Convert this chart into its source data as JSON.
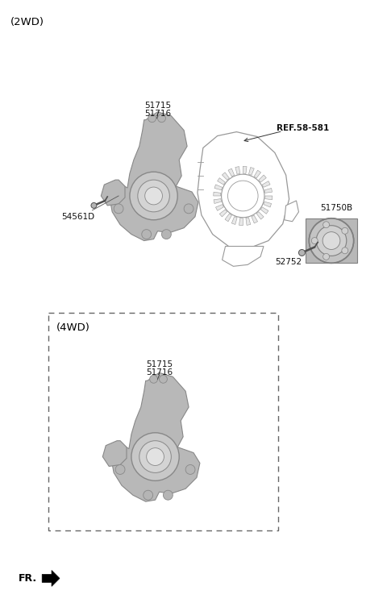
{
  "bg_color": "#ffffff",
  "title_2wd": "(2WD)",
  "title_4wd": "(4WD)",
  "fr_label": "FR.",
  "label_51715": "51715",
  "label_51716": "51716",
  "label_54561D": "54561D",
  "label_ref": "REF.58-581",
  "label_51750B": "51750B",
  "label_52752": "52752",
  "part_color": "#b8b8b8",
  "part_edge": "#888888",
  "line_color": "#444444",
  "shield_color": "#ffffff",
  "shield_edge": "#999999",
  "dashed_edge": "#666666"
}
